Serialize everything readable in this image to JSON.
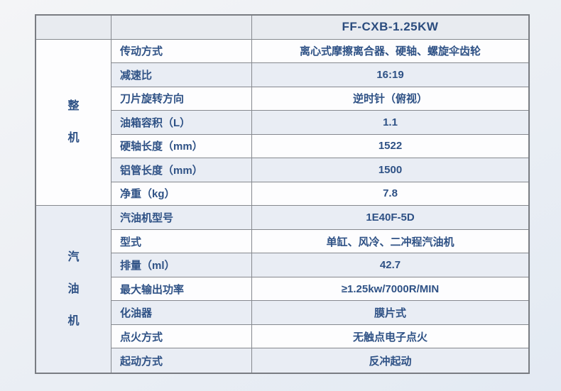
{
  "table": {
    "header": {
      "model": "FF-CXB-1.25KW"
    },
    "sections": [
      {
        "title": "整机",
        "rows": [
          {
            "label": "传动方式",
            "value": "离心式摩擦离合器、硬轴、螺旋伞齿轮"
          },
          {
            "label": "减速比",
            "value": "16:19"
          },
          {
            "label": "刀片旋转方向",
            "value": "逆时针（俯视）"
          },
          {
            "label": "油箱容积（L）",
            "value": "1.1"
          },
          {
            "label": "硬轴长度（mm）",
            "value": "1522"
          },
          {
            "label": "铝管长度（mm）",
            "value": "1500"
          },
          {
            "label": "净重（kg）",
            "value": "7.8"
          }
        ]
      },
      {
        "title": "汽油机",
        "rows": [
          {
            "label": "汽油机型号",
            "value": "1E40F-5D"
          },
          {
            "label": "型式",
            "value": "单缸、风冷、二冲程汽油机"
          },
          {
            "label": "排量（ml）",
            "value": "42.7"
          },
          {
            "label": "最大输出功率",
            "value": "≥1.25kw/7000R/MIN"
          },
          {
            "label": "化油器",
            "value": "膜片式"
          },
          {
            "label": "点火方式",
            "value": "无触点电子点火"
          },
          {
            "label": "起动方式",
            "value": "反冲起动"
          }
        ]
      }
    ],
    "colors": {
      "text_blue": "#2e5185",
      "row_alt_bg": "#e9edf4",
      "header_bg": "#e8ebf0",
      "border_gray": "#85888e"
    }
  }
}
